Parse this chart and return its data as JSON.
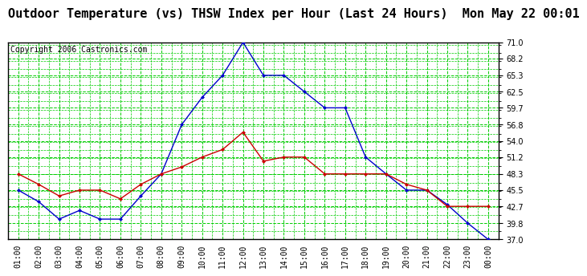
{
  "title": "Outdoor Temperature (vs) THSW Index per Hour (Last 24 Hours)  Mon May 22 00:01",
  "copyright": "Copyright 2006 Castronics.com",
  "hours": [
    "01:00",
    "02:00",
    "03:00",
    "04:00",
    "05:00",
    "06:00",
    "07:00",
    "08:00",
    "09:00",
    "10:00",
    "11:00",
    "12:00",
    "13:00",
    "14:00",
    "15:00",
    "16:00",
    "17:00",
    "18:00",
    "19:00",
    "20:00",
    "21:00",
    "22:00",
    "23:00",
    "00:00"
  ],
  "temp": [
    48.3,
    46.5,
    44.5,
    45.5,
    45.5,
    44.0,
    46.5,
    48.3,
    49.5,
    51.2,
    52.5,
    55.5,
    50.5,
    51.2,
    51.2,
    48.3,
    48.3,
    48.3,
    48.3,
    46.5,
    45.5,
    42.7,
    42.7,
    42.7
  ],
  "thsw": [
    45.5,
    43.5,
    40.5,
    42.0,
    40.5,
    40.5,
    44.5,
    48.3,
    56.8,
    61.5,
    65.3,
    71.0,
    65.3,
    65.3,
    62.5,
    59.7,
    59.7,
    51.2,
    48.3,
    45.5,
    45.5,
    43.0,
    39.8,
    37.0
  ],
  "temp_color": "#cc0000",
  "thsw_color": "#0000cc",
  "bg_color": "#ffffff",
  "plot_bg": "#ffffff",
  "grid_color": "#00cc00",
  "ymin": 37.0,
  "ymax": 71.0,
  "yticks": [
    71.0,
    68.2,
    65.3,
    62.5,
    59.7,
    56.8,
    54.0,
    51.2,
    48.3,
    45.5,
    42.7,
    39.8,
    37.0
  ],
  "title_fontsize": 11,
  "copyright_fontsize": 7
}
